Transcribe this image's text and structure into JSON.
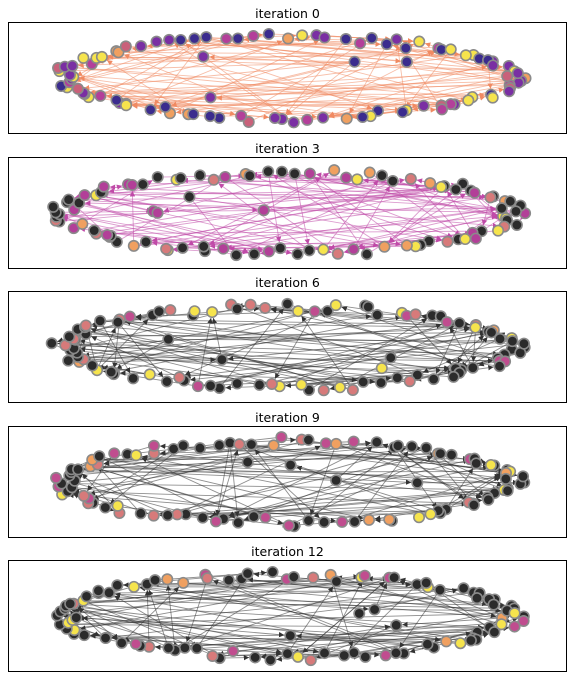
{
  "figure": {
    "panels": [
      {
        "title": "iteration 0",
        "edge_color": "#f08a62",
        "palette": [
          "#3b2c8e",
          "#3b2c8e",
          "#7a2fa3",
          "#7a2fa3",
          "#b33f9a",
          "#c9617a",
          "#f0a060",
          "#f6e44d"
        ],
        "node_count": 95,
        "edge_count": 120
      },
      {
        "title": "iteration 3",
        "edge_color": "#c04aa8",
        "palette": [
          "#2b2b2b",
          "#2b2b2b",
          "#2b2b2b",
          "#2b2b2b",
          "#b23f98",
          "#b23f98",
          "#d77a7a",
          "#f0a060",
          "#f6e44d"
        ],
        "node_count": 95,
        "edge_count": 110
      },
      {
        "title": "iteration 6",
        "edge_color": "#333333",
        "palette": [
          "#2b2b2b",
          "#2b2b2b",
          "#2b2b2b",
          "#2b2b2b",
          "#2b2b2b",
          "#2b2b2b",
          "#c04d8f",
          "#d77a7a",
          "#f0a060",
          "#f6e44d"
        ],
        "node_count": 95,
        "edge_count": 115
      },
      {
        "title": "iteration 9",
        "edge_color": "#333333",
        "palette": [
          "#2b2b2b",
          "#2b2b2b",
          "#2b2b2b",
          "#2b2b2b",
          "#2b2b2b",
          "#2b2b2b",
          "#2b2b2b",
          "#c04d8f",
          "#d77a7a",
          "#f0a060",
          "#f6e44d"
        ],
        "node_count": 95,
        "edge_count": 115
      },
      {
        "title": "iteration 12",
        "edge_color": "#333333",
        "palette": [
          "#2b2b2b",
          "#2b2b2b",
          "#2b2b2b",
          "#2b2b2b",
          "#2b2b2b",
          "#2b2b2b",
          "#2b2b2b",
          "#2b2b2b",
          "#c04d8f",
          "#d77a7a",
          "#f0a060",
          "#f6e44d"
        ],
        "node_count": 95,
        "edge_count": 120
      }
    ],
    "node_border_color": "#8a8a8a"
  }
}
